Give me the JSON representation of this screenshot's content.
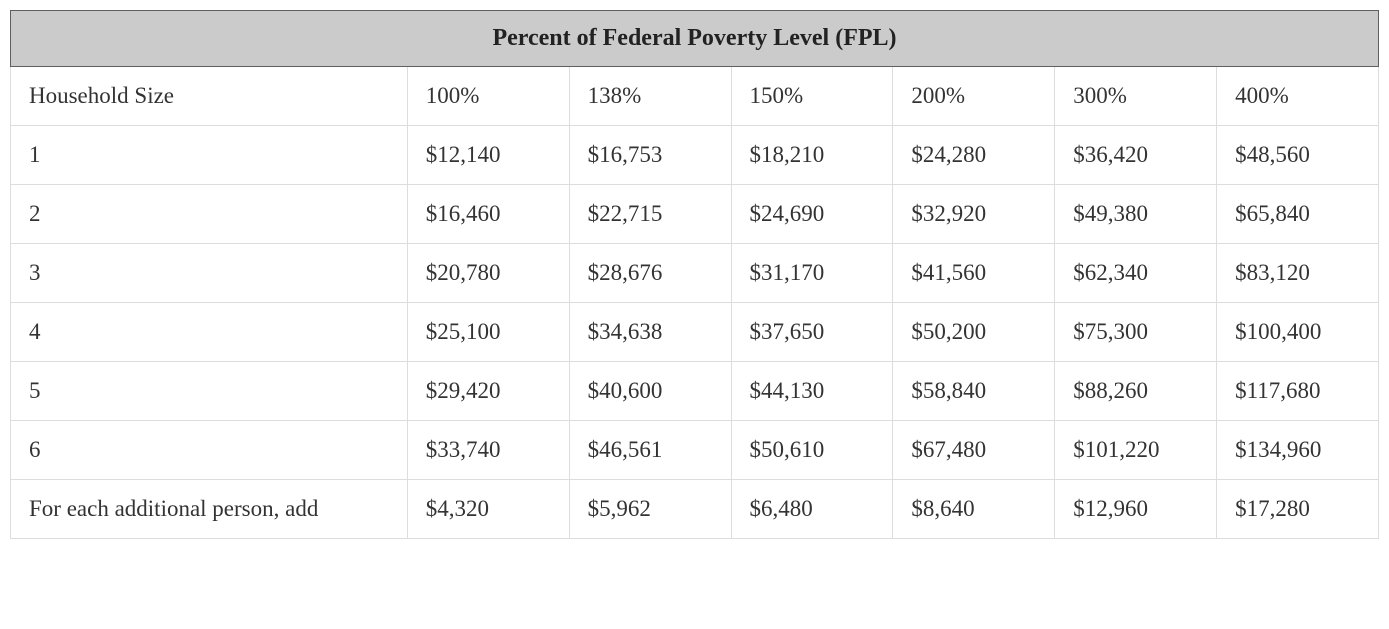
{
  "table": {
    "title": "Percent of Federal Poverty Level (FPL)",
    "first_column_header": "Household Size",
    "percent_columns": [
      "100%",
      "138%",
      "150%",
      "200%",
      "300%",
      "400%"
    ],
    "rows": [
      {
        "label": "1",
        "values": [
          "$12,140",
          "$16,753",
          "$18,210",
          "$24,280",
          "$36,420",
          "$48,560"
        ]
      },
      {
        "label": "2",
        "values": [
          "$16,460",
          "$22,715",
          "$24,690",
          "$32,920",
          "$49,380",
          "$65,840"
        ]
      },
      {
        "label": "3",
        "values": [
          "$20,780",
          "$28,676",
          "$31,170",
          "$41,560",
          "$62,340",
          "$83,120"
        ]
      },
      {
        "label": "4",
        "values": [
          "$25,100",
          "$34,638",
          "$37,650",
          "$50,200",
          "$75,300",
          "$100,400"
        ]
      },
      {
        "label": "5",
        "values": [
          "$29,420",
          "$40,600",
          "$44,130",
          "$58,840",
          "$88,260",
          "$117,680"
        ]
      },
      {
        "label": "6",
        "values": [
          "$33,740",
          "$46,561",
          "$50,610",
          "$67,480",
          "$101,220",
          "$134,960"
        ]
      },
      {
        "label": "For each additional person, add",
        "values": [
          "$4,320",
          "$5,962",
          "$6,480",
          "$8,640",
          "$12,960",
          "$17,280"
        ]
      }
    ],
    "style": {
      "title_bg": "#cbcbcb",
      "title_border": "#5f5f5f",
      "cell_border": "#dddddd",
      "text_color": "#333333",
      "title_fontsize": 24,
      "cell_fontsize": 23,
      "font_family": "Georgia, 'Times New Roman', serif"
    }
  }
}
